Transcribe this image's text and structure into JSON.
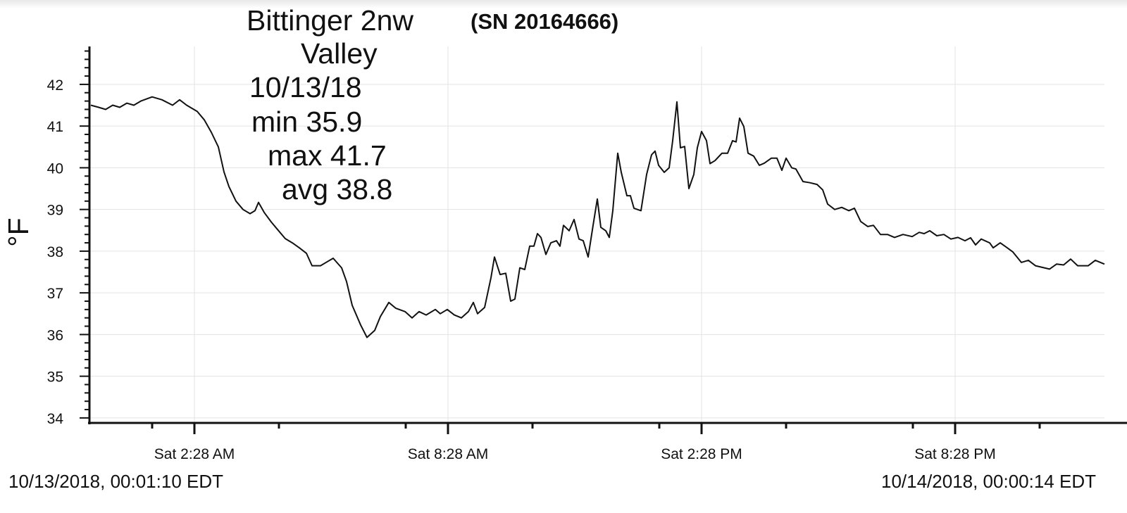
{
  "chart_data": {
    "type": "line",
    "title_lines": [
      "Bittinger 2nw",
      "Valley",
      "10/13/18",
      "min 35.9",
      "max 41.7",
      "avg 38.8"
    ],
    "serial": "(SN 20164666)",
    "y_label": "°F",
    "start_time": "10/13/2018, 00:01:10 EDT",
    "end_time": "10/14/2018, 00:00:14 EDT",
    "xlim": [
      -1,
      1440
    ],
    "xticks": [
      {
        "value": 148,
        "label": "Sat 2:28 AM"
      },
      {
        "value": 508,
        "label": "Sat 8:28 AM"
      },
      {
        "value": 868,
        "label": "Sat 2:28 PM"
      },
      {
        "value": 1228,
        "label": "Sat 8:28 PM"
      }
    ],
    "xminorticks": [
      88,
      268,
      448,
      628,
      808,
      988,
      1168,
      1348
    ],
    "ylim": [
      33.88,
      42.91
    ],
    "yticks": [
      34,
      35,
      36,
      37,
      38,
      39,
      40,
      41,
      42
    ],
    "yminorticks": [
      34.2,
      34.4,
      34.6,
      34.8,
      35.2,
      35.4,
      35.6,
      35.8,
      36.2,
      36.4,
      36.6,
      36.8,
      37.2,
      37.4,
      37.6,
      37.8,
      38.2,
      38.4,
      38.6,
      38.8,
      39.2,
      39.4,
      39.6,
      39.8,
      40.2,
      40.4,
      40.6,
      40.8,
      41.2,
      41.4,
      41.6,
      41.8,
      42.2,
      42.4,
      42.6,
      42.8
    ],
    "grid": true,
    "series": [
      {
        "color": "#111111",
        "x": [
          1,
          12,
          22,
          32,
          42,
          52,
          62,
          72,
          88,
          102,
          117,
          127,
          137,
          152,
          162,
          172,
          182,
          190,
          197,
          207,
          217,
          227,
          234,
          239,
          247,
          257,
          267,
          277,
          287,
          297,
          307,
          315,
          327,
          337,
          345,
          357,
          364,
          372,
          384,
          393,
          404,
          412,
          424,
          434,
          447,
          457,
          467,
          477,
          490,
          497,
          507,
          517,
          527,
          537,
          544,
          550,
          560,
          569,
          574,
          582,
          590,
          597,
          603,
          610,
          617,
          624,
          630,
          635,
          640,
          647,
          654,
          662,
          667,
          672,
          680,
          687,
          694,
          700,
          707,
          714,
          720,
          725,
          732,
          737,
          742,
          749,
          754,
          762,
          767,
          772,
          782,
          790,
          797,
          802,
          807,
          815,
          822,
          827,
          833,
          838,
          844,
          850,
          857,
          862,
          868,
          875,
          880,
          887,
          897,
          905,
          912,
          917,
          922,
          928,
          934,
          942,
          950,
          957,
          967,
          975,
          982,
          988,
          996,
          1002,
          1012,
          1022,
          1032,
          1040,
          1047,
          1057,
          1067,
          1077,
          1085,
          1094,
          1104,
          1112,
          1122,
          1132,
          1142,
          1154,
          1167,
          1177,
          1184,
          1192,
          1202,
          1212,
          1222,
          1232,
          1242,
          1250,
          1257,
          1265,
          1277,
          1282,
          1292,
          1302,
          1310,
          1322,
          1332,
          1342,
          1352,
          1362,
          1372,
          1382,
          1392,
          1402,
          1417,
          1427,
          1440
        ],
        "values": [
          41.5,
          41.45,
          41.4,
          41.5,
          41.45,
          41.55,
          41.5,
          41.6,
          41.7,
          41.63,
          41.5,
          41.63,
          41.5,
          41.35,
          41.15,
          40.85,
          40.5,
          39.9,
          39.55,
          39.2,
          39.0,
          38.9,
          38.97,
          39.17,
          38.93,
          38.7,
          38.5,
          38.3,
          38.2,
          38.08,
          37.95,
          37.65,
          37.65,
          37.75,
          37.83,
          37.6,
          37.27,
          36.7,
          36.23,
          35.93,
          36.1,
          36.43,
          36.77,
          36.63,
          36.55,
          36.4,
          36.55,
          36.47,
          36.6,
          36.5,
          36.6,
          36.47,
          36.4,
          36.55,
          36.77,
          36.5,
          36.65,
          37.36,
          37.86,
          37.44,
          37.47,
          36.8,
          36.85,
          37.6,
          37.56,
          38.12,
          38.12,
          38.42,
          38.33,
          37.92,
          38.2,
          38.25,
          38.12,
          38.62,
          38.49,
          38.76,
          38.29,
          38.25,
          37.86,
          38.62,
          39.25,
          38.57,
          38.49,
          38.33,
          38.97,
          40.35,
          39.89,
          39.33,
          39.33,
          39.03,
          38.97,
          39.84,
          40.31,
          40.4,
          40.06,
          39.89,
          40.0,
          40.65,
          41.58,
          40.48,
          40.51,
          39.5,
          39.84,
          40.48,
          40.87,
          40.65,
          40.1,
          40.17,
          40.35,
          40.35,
          40.65,
          40.62,
          41.19,
          40.99,
          40.35,
          40.28,
          40.06,
          40.11,
          40.23,
          40.23,
          39.94,
          40.23,
          40.0,
          39.97,
          39.67,
          39.64,
          39.6,
          39.47,
          39.13,
          39.0,
          39.05,
          38.97,
          39.03,
          38.71,
          38.59,
          38.62,
          38.4,
          38.4,
          38.33,
          38.4,
          38.35,
          38.45,
          38.42,
          38.49,
          38.37,
          38.4,
          38.29,
          38.33,
          38.25,
          38.32,
          38.15,
          38.29,
          38.2,
          38.08,
          38.2,
          38.08,
          37.98,
          37.73,
          37.78,
          37.65,
          37.61,
          37.57,
          37.69,
          37.67,
          37.81,
          37.65,
          37.65,
          37.78,
          37.69
        ]
      }
    ]
  }
}
